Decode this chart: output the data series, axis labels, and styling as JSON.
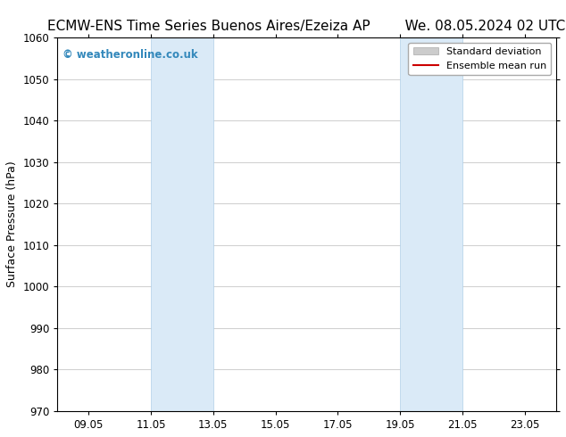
{
  "title_left": "ECMW-ENS Time Series Buenos Aires/Ezeiza AP",
  "title_right": "We. 08.05.2024 02 UTC",
  "ylabel": "Surface Pressure (hPa)",
  "ylim": [
    970,
    1060
  ],
  "yticks": [
    970,
    980,
    990,
    1000,
    1010,
    1020,
    1030,
    1040,
    1050,
    1060
  ],
  "xtick_labels": [
    "09.05",
    "11.05",
    "13.05",
    "15.05",
    "17.05",
    "19.05",
    "21.05",
    "23.05"
  ],
  "xtick_positions": [
    1,
    3,
    5,
    7,
    9,
    11,
    13,
    15
  ],
  "xlim": [
    0,
    16
  ],
  "shaded_bands": [
    {
      "x_start": 3,
      "x_end": 5
    },
    {
      "x_start": 11,
      "x_end": 13
    }
  ],
  "shaded_color": "#daeaf7",
  "shaded_edge_color": "#b0cfe8",
  "watermark_text": "© weatheronline.co.uk",
  "watermark_color": "#3388bb",
  "legend_items": [
    {
      "label": "Standard deviation",
      "color": "#cccccc",
      "type": "patch"
    },
    {
      "label": "Ensemble mean run",
      "color": "#cc0000",
      "lw": 1.5,
      "type": "line"
    }
  ],
  "background_color": "#ffffff",
  "title_fontsize": 11,
  "axis_label_fontsize": 9,
  "tick_fontsize": 8.5,
  "grid_color": "#bbbbbb",
  "legend_fontsize": 8
}
